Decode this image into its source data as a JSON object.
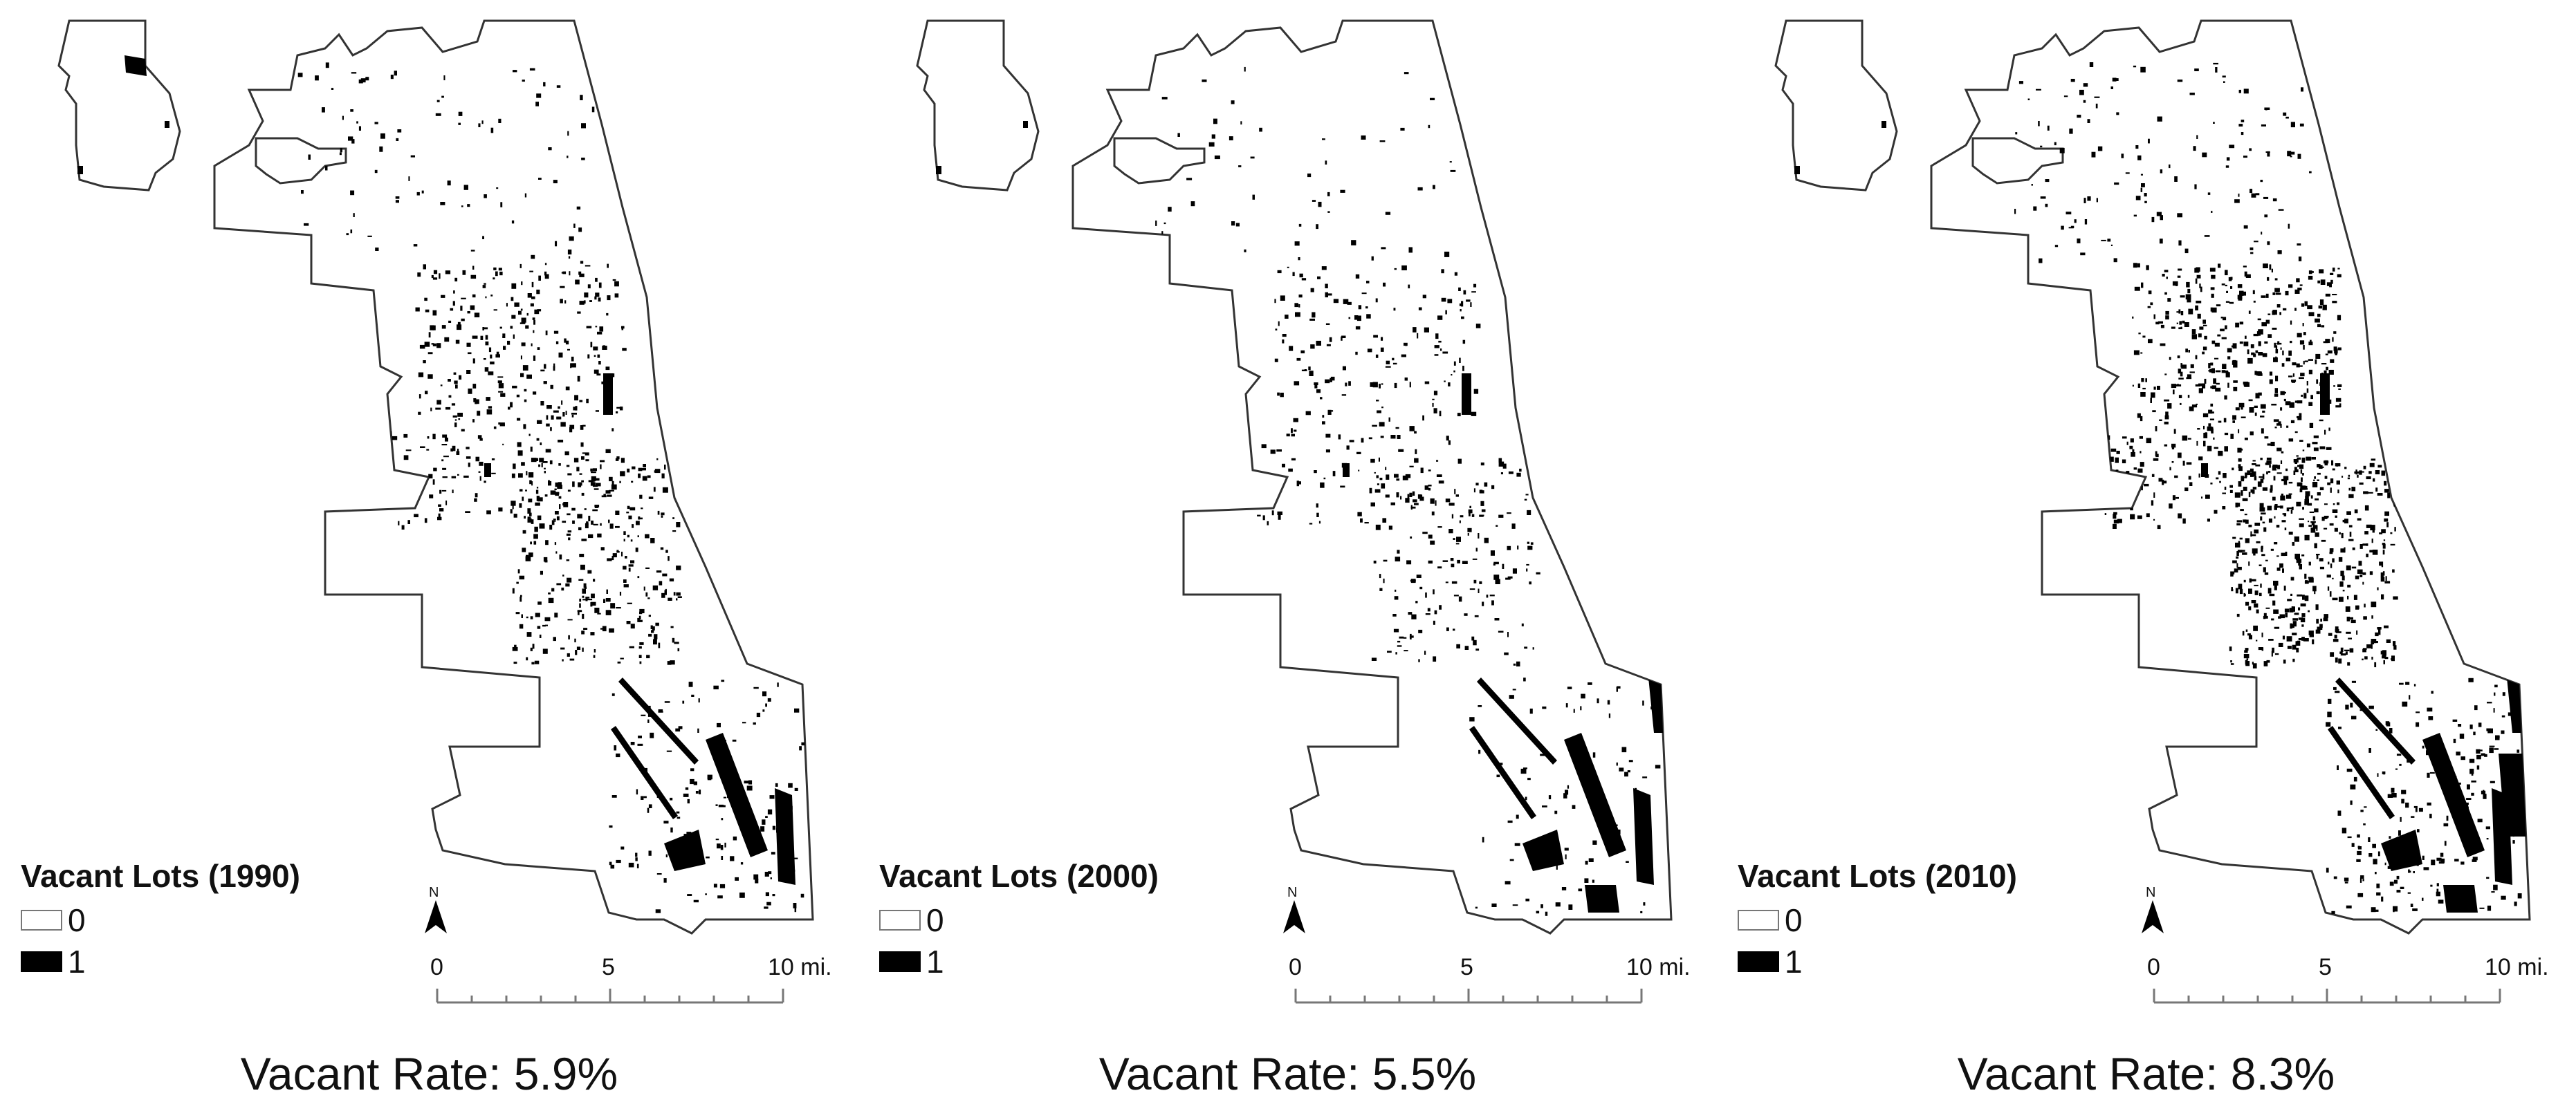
{
  "panels": [
    {
      "legend_title": "Vacant Lots (1990)",
      "rate_label": "Vacant Rate: 5.9%",
      "density": 1.0,
      "south_cluster": 0.7
    },
    {
      "legend_title": "Vacant Lots (2000)",
      "rate_label": "Vacant Rate: 5.5%",
      "density": 0.6,
      "south_cluster": 1.0
    },
    {
      "legend_title": "Vacant Lots (2010)",
      "rate_label": "Vacant Rate: 8.3%",
      "density": 1.5,
      "south_cluster": 1.2
    }
  ],
  "legend": {
    "class_0": "0",
    "class_1": "1"
  },
  "north_arrow": {
    "letter": "N"
  },
  "scale_bar": {
    "ticks": [
      "0",
      "5",
      "10 mi."
    ]
  },
  "colors": {
    "vacant": "#000000",
    "not_vacant": "#ffffff",
    "boundary": "#333333"
  }
}
